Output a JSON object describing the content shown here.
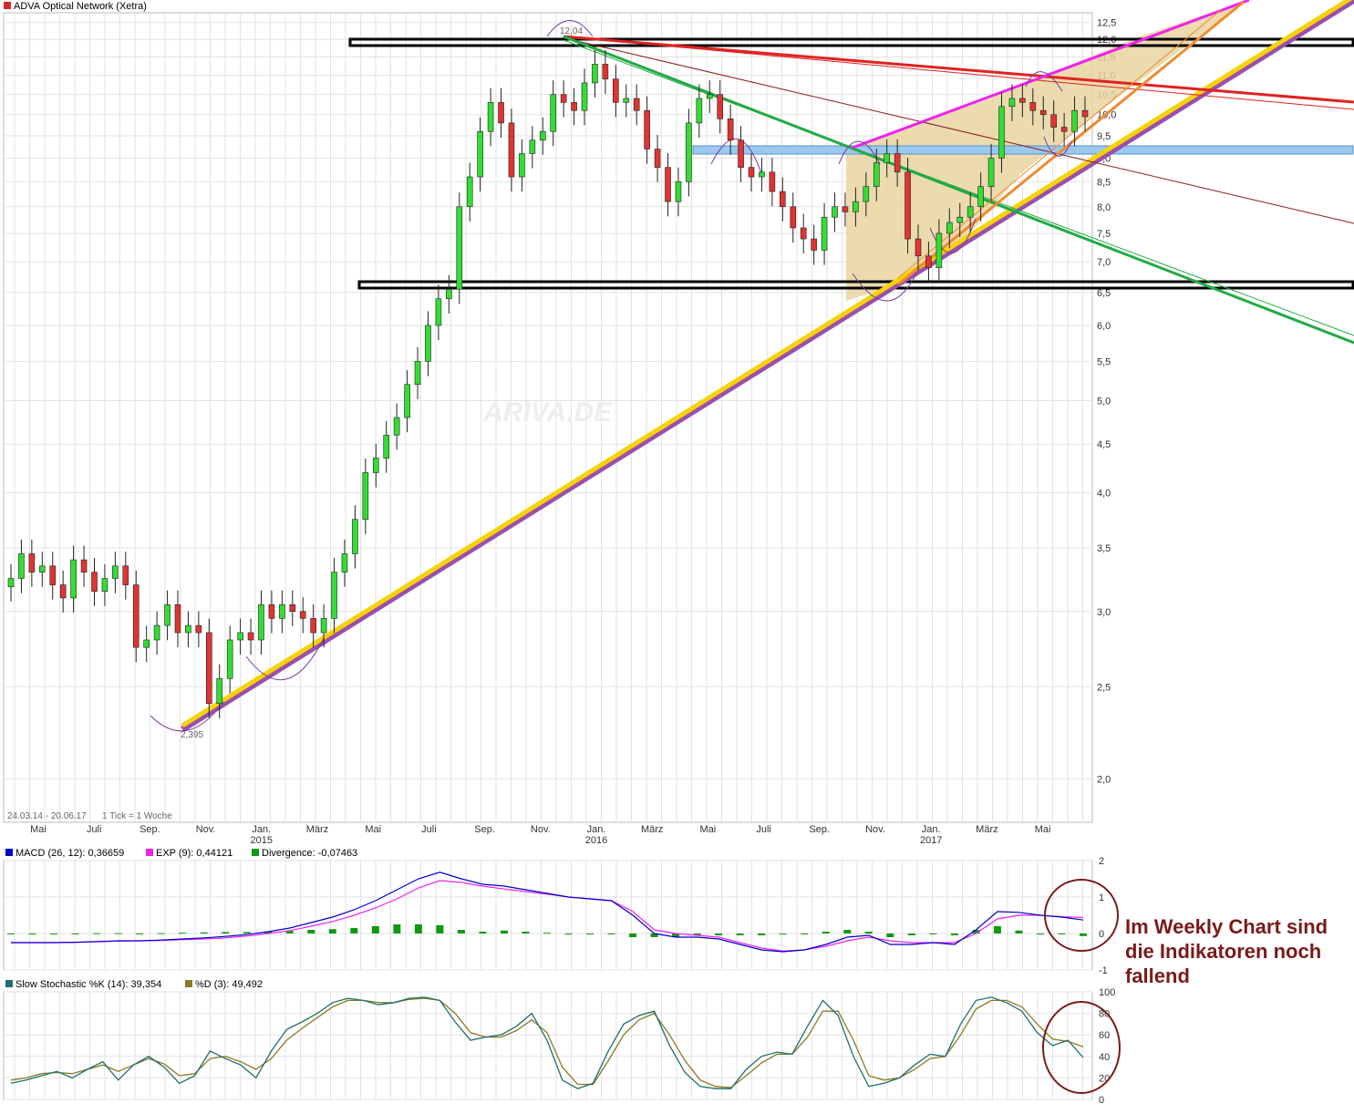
{
  "chart_data": [
    {
      "type": "candlestick",
      "title": "ADVA Optical Network (Xetra)",
      "title_color": "#d62728",
      "period_label": "24.03.14 - 20.06.17",
      "tick_label": "1 Tick = 1 Woche",
      "watermark": "ARIVA.DE",
      "y_scale": "log",
      "ylim": [
        1.8,
        12.8
      ],
      "y_ticks": [
        "12,5",
        "12,0",
        "11,5",
        "11,0",
        "10,5",
        "10,0",
        "9,5",
        "9,0",
        "8,5",
        "8,0",
        "7,5",
        "7,0",
        "6,5",
        "6,0",
        "5,5",
        "5,0",
        "4,5",
        "4,0",
        "3,5",
        "3,0",
        "2,5",
        "2,0"
      ],
      "x_tick_labels": [
        {
          "m": "Mai",
          "y": ""
        },
        {
          "m": "Juli",
          "y": ""
        },
        {
          "m": "Sep.",
          "y": ""
        },
        {
          "m": "Nov.",
          "y": ""
        },
        {
          "m": "Jan.",
          "y": "2015"
        },
        {
          "m": "März",
          "y": ""
        },
        {
          "m": "Mai",
          "y": ""
        },
        {
          "m": "Juli",
          "y": ""
        },
        {
          "m": "Sep.",
          "y": ""
        },
        {
          "m": "Nov.",
          "y": ""
        },
        {
          "m": "Jan.",
          "y": "2016"
        },
        {
          "m": "März",
          "y": ""
        },
        {
          "m": "Mai",
          "y": ""
        },
        {
          "m": "Juli",
          "y": ""
        },
        {
          "m": "Sep.",
          "y": ""
        },
        {
          "m": "Nov.",
          "y": ""
        },
        {
          "m": "Jan.",
          "y": "2017"
        },
        {
          "m": "März",
          "y": ""
        },
        {
          "m": "Mai",
          "y": ""
        }
      ],
      "annotations": {
        "high_label": "12,04",
        "low_label": "2,395"
      },
      "close_series": [
        3.25,
        3.45,
        3.3,
        3.35,
        3.2,
        3.1,
        3.4,
        3.3,
        3.15,
        3.25,
        3.35,
        3.2,
        2.75,
        2.8,
        2.9,
        3.05,
        2.85,
        2.9,
        2.85,
        2.4,
        2.55,
        2.8,
        2.85,
        2.8,
        3.05,
        2.95,
        3.05,
        3.0,
        2.95,
        2.85,
        2.95,
        3.3,
        3.45,
        3.75,
        4.2,
        4.35,
        4.6,
        4.8,
        5.2,
        5.5,
        6.0,
        6.4,
        6.55,
        8.0,
        8.6,
        9.6,
        10.3,
        9.8,
        8.6,
        9.1,
        9.4,
        9.6,
        10.5,
        10.3,
        10.1,
        10.8,
        11.3,
        10.9,
        10.3,
        10.4,
        10.1,
        9.2,
        8.8,
        8.1,
        8.5,
        9.8,
        10.4,
        10.5,
        9.9,
        9.4,
        8.8,
        8.6,
        8.7,
        8.3,
        8.0,
        7.6,
        7.4,
        7.2,
        7.8,
        8.0,
        7.9,
        8.1,
        8.4,
        8.9,
        9.1,
        8.7,
        7.4,
        7.1,
        6.9,
        7.5,
        7.7,
        7.8,
        8.0,
        8.4,
        9.0,
        10.2,
        10.4,
        10.3,
        10.1,
        10.0,
        9.7,
        9.6,
        10.1,
        9.95
      ]
    },
    {
      "type": "line",
      "title": "MACD",
      "legend": [
        {
          "name": "MACD (26, 12): 0,36659",
          "color": "#0000cc"
        },
        {
          "name": "EXP (9): 0,44121",
          "color": "#ee22ee"
        },
        {
          "name": "Divergence: -0,07463",
          "color": "#119911"
        }
      ],
      "ylim": [
        -1,
        2
      ],
      "y_ticks": [
        "2",
        "1",
        "0",
        "-1"
      ],
      "macd": [
        -0.25,
        -0.25,
        -0.25,
        -0.24,
        -0.22,
        -0.2,
        -0.2,
        -0.18,
        -0.15,
        -0.12,
        -0.08,
        -0.03,
        0.05,
        0.15,
        0.3,
        0.45,
        0.65,
        0.9,
        1.2,
        1.5,
        1.68,
        1.5,
        1.35,
        1.3,
        1.2,
        1.1,
        1.0,
        0.95,
        0.9,
        0.5,
        0.0,
        -0.1,
        -0.1,
        -0.15,
        -0.3,
        -0.45,
        -0.5,
        -0.45,
        -0.3,
        -0.1,
        -0.05,
        -0.3,
        -0.3,
        -0.25,
        -0.3,
        0.1,
        0.6,
        0.58,
        0.5,
        0.45,
        0.37
      ],
      "signal": [
        -0.25,
        -0.25,
        -0.25,
        -0.24,
        -0.23,
        -0.21,
        -0.2,
        -0.19,
        -0.17,
        -0.15,
        -0.12,
        -0.07,
        0.0,
        0.08,
        0.2,
        0.33,
        0.5,
        0.7,
        0.95,
        1.25,
        1.45,
        1.4,
        1.3,
        1.22,
        1.15,
        1.08,
        1.0,
        0.95,
        0.9,
        0.6,
        0.1,
        0.0,
        -0.05,
        -0.1,
        -0.25,
        -0.4,
        -0.48,
        -0.45,
        -0.35,
        -0.2,
        -0.1,
        -0.2,
        -0.25,
        -0.25,
        -0.25,
        0.0,
        0.4,
        0.5,
        0.5,
        0.46,
        0.44
      ]
    },
    {
      "type": "line",
      "title": "Slow Stochastic",
      "legend": [
        {
          "name": "Slow Stochastic %K (14): 39,354",
          "color": "#1f6f6f"
        },
        {
          "name": "%D (3): 49,492",
          "color": "#8a7a22"
        }
      ],
      "ylim": [
        0,
        100
      ],
      "y_ticks": [
        "100",
        "80",
        "60",
        "40",
        "20",
        "0"
      ],
      "k": [
        15,
        18,
        22,
        26,
        20,
        28,
        35,
        18,
        32,
        40,
        30,
        15,
        22,
        45,
        38,
        32,
        20,
        45,
        65,
        72,
        80,
        90,
        94,
        92,
        88,
        90,
        94,
        95,
        92,
        72,
        55,
        58,
        60,
        68,
        80,
        55,
        18,
        10,
        15,
        45,
        70,
        78,
        82,
        50,
        25,
        12,
        10,
        10,
        28,
        40,
        44,
        42,
        68,
        92,
        78,
        40,
        12,
        15,
        20,
        32,
        42,
        40,
        70,
        92,
        95,
        90,
        82,
        62,
        50,
        55,
        39
      ],
      "d": [
        18,
        20,
        24,
        25,
        24,
        28,
        32,
        26,
        32,
        38,
        33,
        22,
        24,
        38,
        40,
        35,
        28,
        38,
        55,
        66,
        76,
        86,
        92,
        92,
        90,
        90,
        93,
        94,
        92,
        80,
        62,
        58,
        58,
        64,
        74,
        62,
        30,
        14,
        14,
        36,
        60,
        74,
        80,
        60,
        36,
        18,
        12,
        11,
        22,
        34,
        42,
        42,
        58,
        82,
        82,
        55,
        22,
        18,
        20,
        28,
        38,
        40,
        60,
        84,
        92,
        92,
        86,
        70,
        56,
        54,
        49
      ]
    }
  ],
  "side_note": [
    "Im Weekly Chart sind",
    "die Indikatoren noch",
    "fallend"
  ],
  "colors": {
    "bull": "#33dd33",
    "bear": "#e03333",
    "wick": "#222222",
    "grid": "#e2e2e2",
    "support_yellow": "#f5d200",
    "support_purple": "#9a4fb0",
    "resistance_red": "#e02222",
    "trend_green": "#22aa44",
    "channel_magenta": "#ee22ee",
    "box_blue": "#9ac8ef",
    "fill_tan": "#e8d5a0",
    "circle": "#7a1a1a"
  }
}
